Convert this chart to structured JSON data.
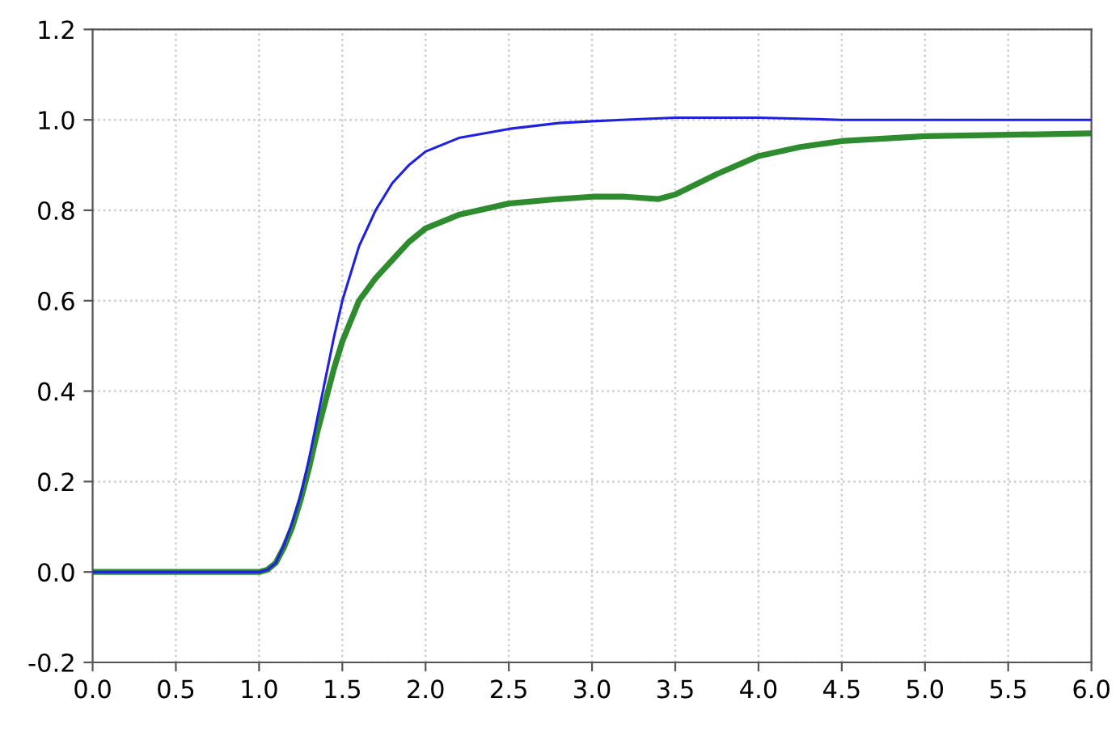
{
  "chart_data": {
    "type": "line",
    "grid": true,
    "line_style": "solid",
    "marker": "none",
    "xlim": [
      0,
      6
    ],
    "ylim": [
      -0.2,
      1.2
    ],
    "xticks": [
      {
        "value": 0,
        "label": "0.0"
      },
      0.5,
      {
        "value": 1,
        "label": "1.0"
      },
      1.5,
      {
        "value": 2,
        "label": "2.0"
      },
      2.5,
      {
        "value": 3,
        "label": "3.0"
      },
      3.5,
      {
        "value": 4,
        "label": "4.0"
      },
      4.5,
      {
        "value": 5,
        "label": "5.0"
      },
      5.5,
      {
        "value": 6,
        "label": "6.0"
      }
    ],
    "yticks": [
      -0.2,
      {
        "value": 0,
        "label": "0.0"
      },
      0.2,
      0.4,
      0.6,
      0.8,
      {
        "value": 1,
        "label": "1.0"
      },
      1.2
    ],
    "series": [
      {
        "color": "#2020e0",
        "x": [
          0,
          1.0,
          1.05,
          1.1,
          1.15,
          1.2,
          1.25,
          1.3,
          1.35,
          1.4,
          1.45,
          1.5,
          1.6,
          1.7,
          1.8,
          1.9,
          2.0,
          2.2,
          2.5,
          2.8,
          3.0,
          3.5,
          4.0,
          4.5,
          5.0,
          6.0
        ],
        "values": [
          0,
          0,
          0.005,
          0.02,
          0.06,
          0.11,
          0.17,
          0.25,
          0.34,
          0.43,
          0.52,
          0.6,
          0.72,
          0.8,
          0.86,
          0.9,
          0.93,
          0.96,
          0.98,
          0.993,
          0.997,
          1.005,
          1.005,
          1.0,
          1.0,
          1.0
        ]
      },
      {
        "color": "#2e8b2e",
        "x": [
          0,
          1.0,
          1.05,
          1.1,
          1.15,
          1.2,
          1.25,
          1.3,
          1.35,
          1.4,
          1.45,
          1.5,
          1.6,
          1.7,
          1.8,
          1.9,
          2.0,
          2.2,
          2.5,
          2.8,
          3.0,
          3.2,
          3.4,
          3.5,
          3.75,
          4.0,
          4.25,
          4.5,
          5.0,
          5.5,
          6.0
        ],
        "values": [
          0,
          0,
          0.005,
          0.02,
          0.055,
          0.1,
          0.16,
          0.23,
          0.31,
          0.38,
          0.45,
          0.51,
          0.6,
          0.65,
          0.69,
          0.73,
          0.76,
          0.79,
          0.815,
          0.825,
          0.83,
          0.83,
          0.825,
          0.835,
          0.88,
          0.92,
          0.94,
          0.953,
          0.964,
          0.967,
          0.97
        ]
      }
    ]
  }
}
